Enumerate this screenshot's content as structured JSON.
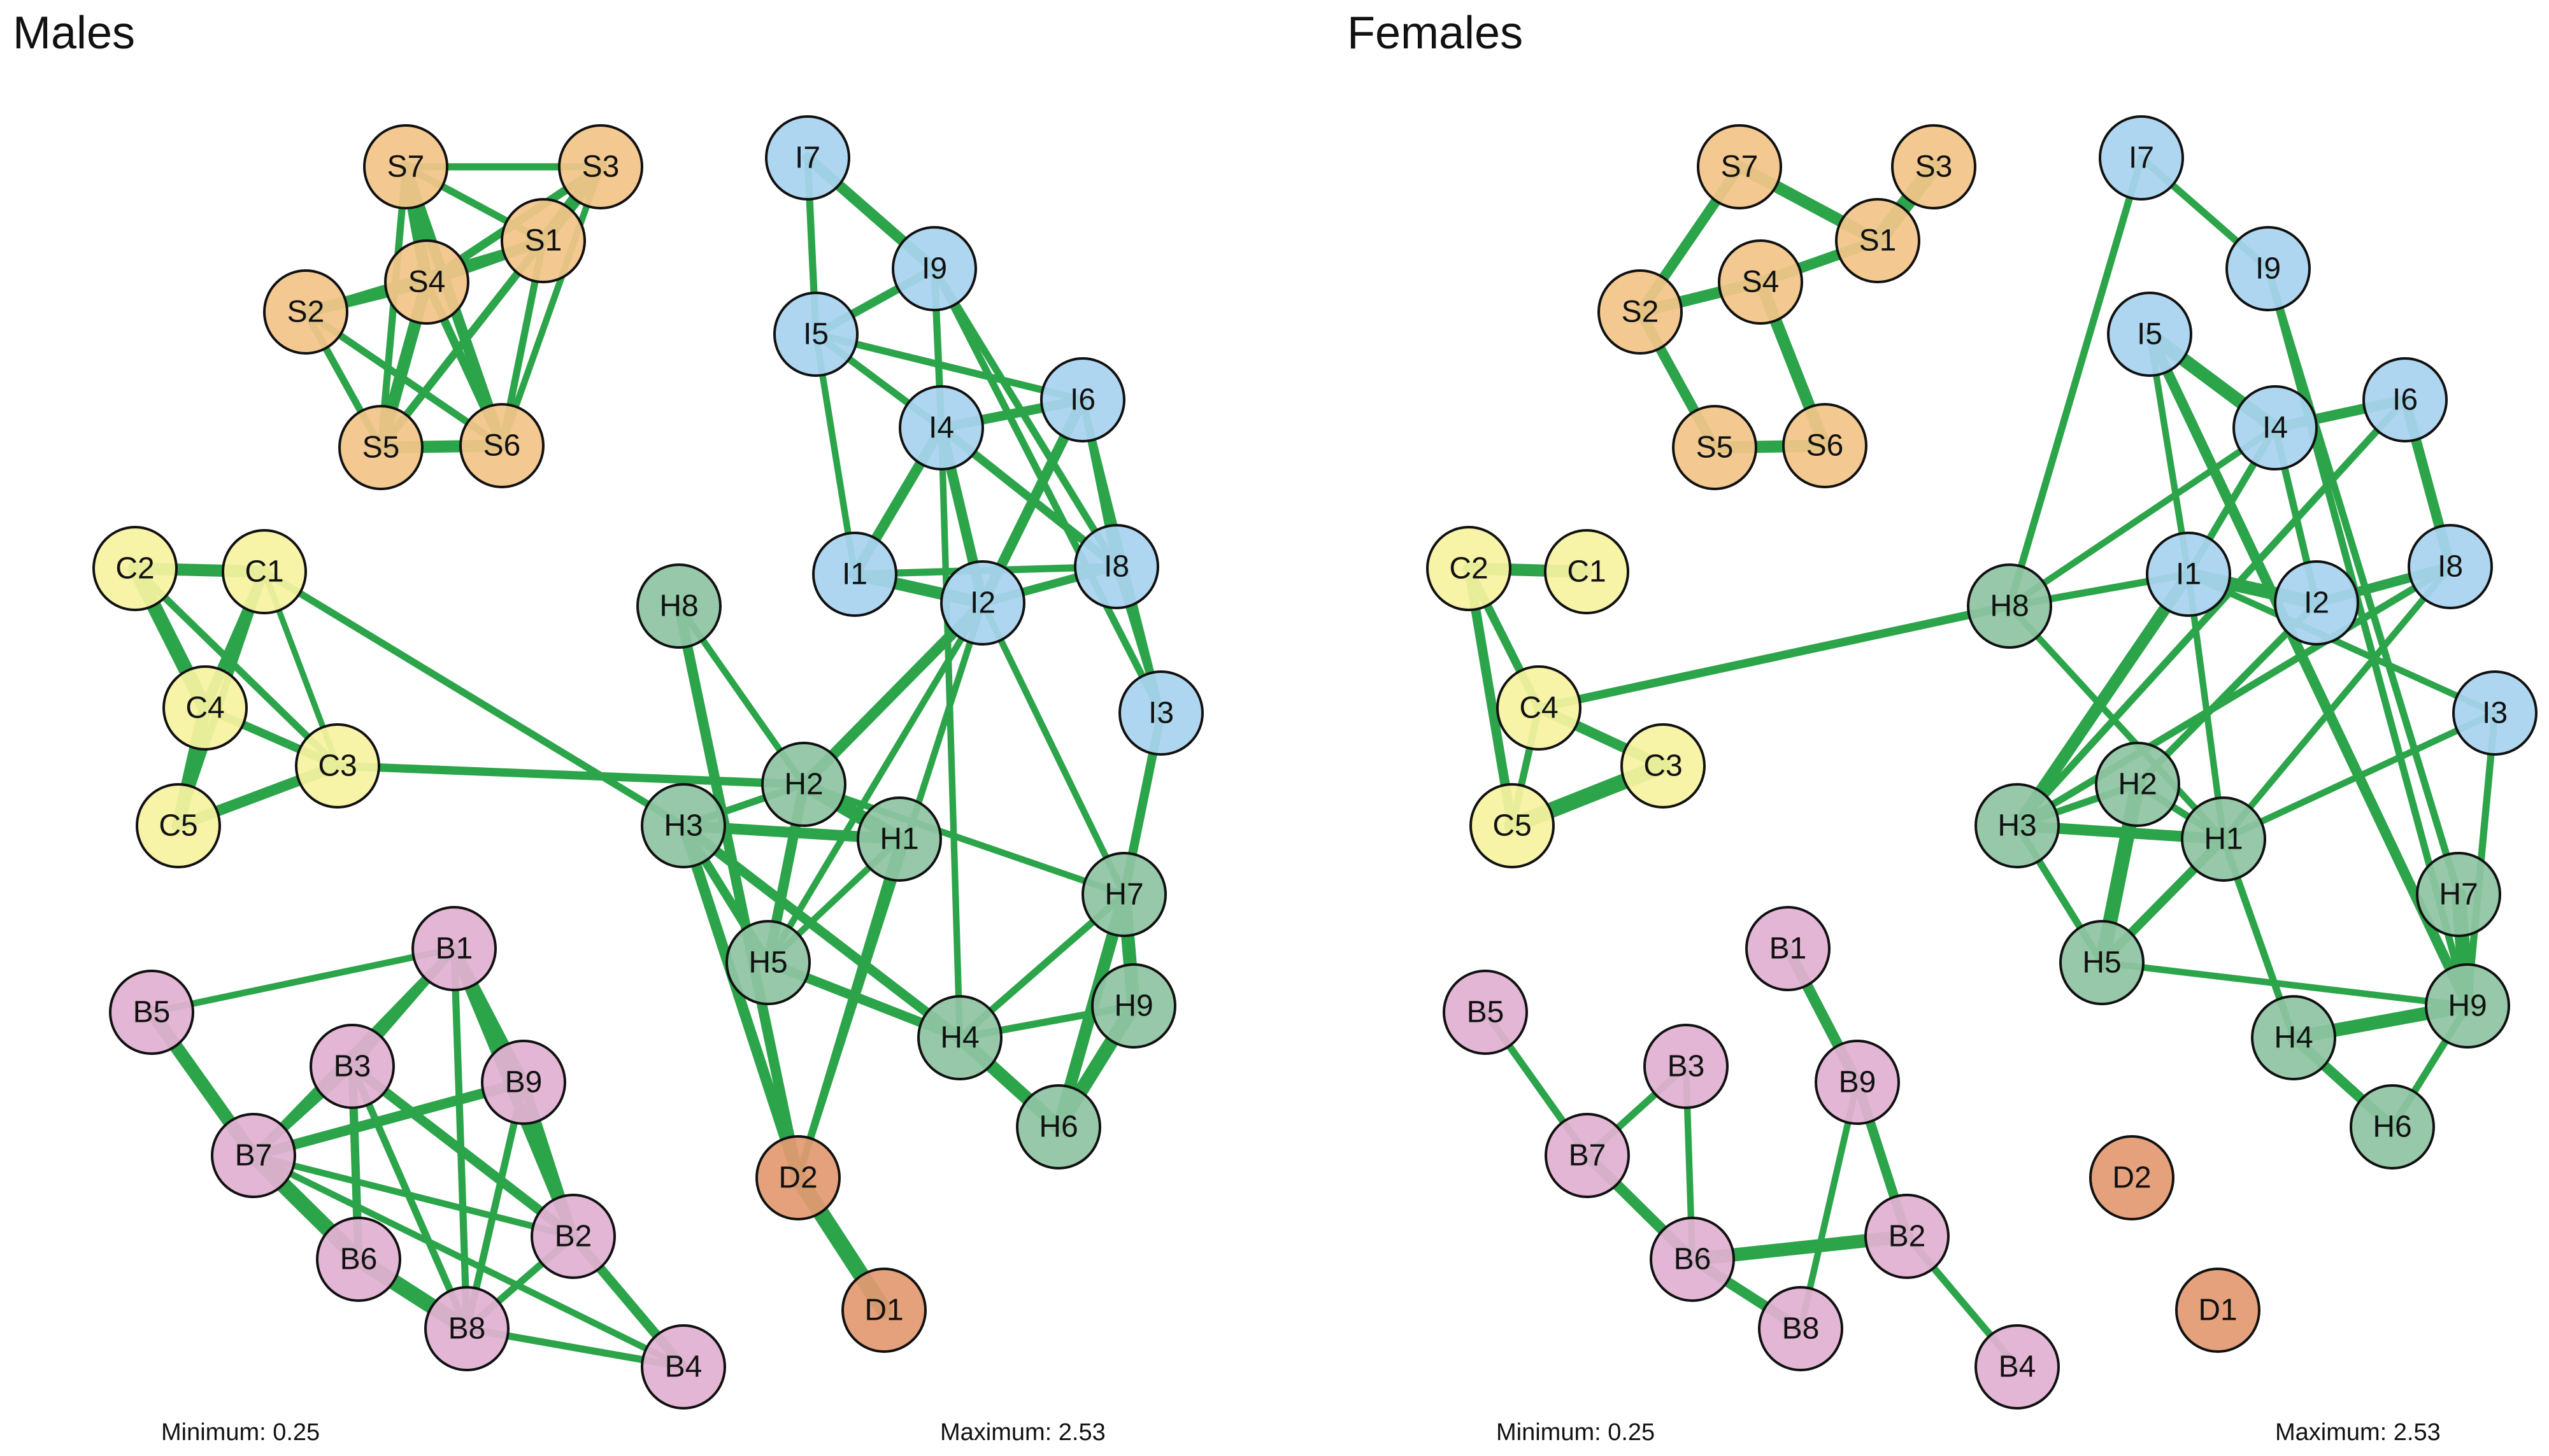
{
  "figure": {
    "edge_color": "#2ca44a",
    "node_stroke": "#111111",
    "group_colors": {
      "S": "#f2c589",
      "I": "#a9d3ef",
      "C": "#f6f2a0",
      "H": "#8ec4a3",
      "B": "#e2b0d2",
      "D": "#e29a72"
    },
    "weight_range": {
      "min": 0.25,
      "max": 2.53
    }
  },
  "panels": [
    {
      "title": "Males",
      "footer_min": "Minimum: 0.25",
      "footer_max": "Maximum: 2.53",
      "nodes": [
        "S7",
        "S3",
        "S1",
        "S4",
        "S2",
        "S5",
        "S6",
        "I7",
        "I9",
        "I5",
        "I6",
        "I4",
        "I1",
        "I2",
        "I8",
        "I3",
        "C2",
        "C1",
        "C4",
        "C3",
        "C5",
        "H8",
        "H2",
        "H3",
        "H1",
        "H7",
        "H5",
        "H4",
        "H9",
        "H6",
        "B1",
        "B5",
        "B3",
        "B9",
        "B7",
        "B2",
        "B6",
        "B8",
        "B4",
        "D2",
        "D1"
      ],
      "edges": [
        [
          "S7",
          "S3",
          1.0
        ],
        [
          "S7",
          "S1",
          1.0
        ],
        [
          "S7",
          "S4",
          1.8
        ],
        [
          "S7",
          "S5",
          1.0
        ],
        [
          "S7",
          "S6",
          1.6
        ],
        [
          "S3",
          "S1",
          2.0
        ],
        [
          "S3",
          "S4",
          1.2
        ],
        [
          "S3",
          "S5",
          1.0
        ],
        [
          "S3",
          "S6",
          0.9
        ],
        [
          "S1",
          "S4",
          1.6
        ],
        [
          "S1",
          "S2",
          1.0
        ],
        [
          "S1",
          "S5",
          1.1
        ],
        [
          "S1",
          "S6",
          1.0
        ],
        [
          "S4",
          "S2",
          1.7
        ],
        [
          "S4",
          "S5",
          1.8
        ],
        [
          "S4",
          "S6",
          1.2
        ],
        [
          "S2",
          "S5",
          1.0
        ],
        [
          "S2",
          "S6",
          1.0
        ],
        [
          "S5",
          "S6",
          1.8
        ],
        [
          "I7",
          "I9",
          1.6
        ],
        [
          "I7",
          "I5",
          1.0
        ],
        [
          "I9",
          "I5",
          1.2
        ],
        [
          "I9",
          "I4",
          1.0
        ],
        [
          "I9",
          "I8",
          1.0
        ],
        [
          "I9",
          "I3",
          1.0
        ],
        [
          "I5",
          "I6",
          1.0
        ],
        [
          "I5",
          "I4",
          1.0
        ],
        [
          "I5",
          "I1",
          0.9
        ],
        [
          "I6",
          "I4",
          1.4
        ],
        [
          "I6",
          "I2",
          1.5
        ],
        [
          "I6",
          "I8",
          1.0
        ],
        [
          "I4",
          "I1",
          1.5
        ],
        [
          "I4",
          "I2",
          1.5
        ],
        [
          "I4",
          "I8",
          1.2
        ],
        [
          "I4",
          "H4",
          0.9
        ],
        [
          "I1",
          "I2",
          1.8
        ],
        [
          "I1",
          "I8",
          1.0
        ],
        [
          "I2",
          "I8",
          1.2
        ],
        [
          "I8",
          "I3",
          0.9
        ],
        [
          "I6",
          "I3",
          0.9
        ],
        [
          "I2",
          "H2",
          1.6
        ],
        [
          "I2",
          "H5",
          0.9
        ],
        [
          "I2",
          "D2",
          0.9
        ],
        [
          "I2",
          "H7",
          0.9
        ],
        [
          "I3",
          "H7",
          1.3
        ],
        [
          "C2",
          "C1",
          1.8
        ],
        [
          "C2",
          "C4",
          2.2
        ],
        [
          "C2",
          "C3",
          1.0
        ],
        [
          "C1",
          "C4",
          1.5
        ],
        [
          "C1",
          "C5",
          1.0
        ],
        [
          "C1",
          "C3",
          0.8
        ],
        [
          "C4",
          "C3",
          1.2
        ],
        [
          "C4",
          "C5",
          2.0
        ],
        [
          "C3",
          "C5",
          1.6
        ],
        [
          "C1",
          "H3",
          1.0
        ],
        [
          "C3",
          "H2",
          1.2
        ],
        [
          "H8",
          "H2",
          0.9
        ],
        [
          "H8",
          "D2",
          1.5
        ],
        [
          "H2",
          "H1",
          2.2
        ],
        [
          "H2",
          "H3",
          1.0
        ],
        [
          "H2",
          "H5",
          1.5
        ],
        [
          "H2",
          "H7",
          0.9
        ],
        [
          "H3",
          "H1",
          1.6
        ],
        [
          "H3",
          "H5",
          1.3
        ],
        [
          "H3",
          "H4",
          1.4
        ],
        [
          "H3",
          "D2",
          1.6
        ],
        [
          "H1",
          "H5",
          0.9
        ],
        [
          "H1",
          "D2",
          0.9
        ],
        [
          "H7",
          "H9",
          2.0
        ],
        [
          "H7",
          "H4",
          1.0
        ],
        [
          "H7",
          "H6",
          1.8
        ],
        [
          "H5",
          "H4",
          1.4
        ],
        [
          "H4",
          "H9",
          1.0
        ],
        [
          "H4",
          "H6",
          2.0
        ],
        [
          "H9",
          "H6",
          2.1
        ],
        [
          "D2",
          "D1",
          2.5
        ],
        [
          "B1",
          "B5",
          0.9
        ],
        [
          "B1",
          "B3",
          1.2
        ],
        [
          "B1",
          "B9",
          1.6
        ],
        [
          "B1",
          "B7",
          1.0
        ],
        [
          "B1",
          "B2",
          1.7
        ],
        [
          "B1",
          "B8",
          1.0
        ],
        [
          "B5",
          "B7",
          2.0
        ],
        [
          "B3",
          "B7",
          1.2
        ],
        [
          "B3",
          "B6",
          1.2
        ],
        [
          "B3",
          "B2",
          1.4
        ],
        [
          "B3",
          "B8",
          1.0
        ],
        [
          "B9",
          "B7",
          1.5
        ],
        [
          "B9",
          "B2",
          1.4
        ],
        [
          "B9",
          "B8",
          1.0
        ],
        [
          "B7",
          "B6",
          2.4
        ],
        [
          "B7",
          "B2",
          0.9
        ],
        [
          "B7",
          "B4",
          0.9
        ],
        [
          "B2",
          "B8",
          1.0
        ],
        [
          "B2",
          "B4",
          1.4
        ],
        [
          "B6",
          "B8",
          2.4
        ],
        [
          "B8",
          "B4",
          1.0
        ]
      ]
    },
    {
      "title": "Females",
      "footer_min": "Minimum: 0.25",
      "footer_max": "Maximum: 2.53",
      "nodes": [
        "S7",
        "S3",
        "S1",
        "S4",
        "S2",
        "S5",
        "S6",
        "I7",
        "I9",
        "I5",
        "I6",
        "I4",
        "I1",
        "I2",
        "I8",
        "I3",
        "C2",
        "C1",
        "C4",
        "C3",
        "C5",
        "H8",
        "H2",
        "H3",
        "H1",
        "H7",
        "H5",
        "H4",
        "H9",
        "H6",
        "B1",
        "B5",
        "B3",
        "B9",
        "B7",
        "B2",
        "B6",
        "B8",
        "B4",
        "D2",
        "D1"
      ],
      "edges": [
        [
          "S7",
          "S1",
          1.8
        ],
        [
          "S7",
          "S2",
          1.5
        ],
        [
          "S3",
          "S1",
          2.5
        ],
        [
          "S1",
          "S4",
          1.6
        ],
        [
          "S4",
          "S2",
          1.7
        ],
        [
          "S4",
          "S6",
          1.8
        ],
        [
          "S2",
          "S5",
          1.5
        ],
        [
          "S5",
          "S6",
          1.8
        ],
        [
          "I7",
          "I9",
          1.0
        ],
        [
          "I7",
          "H8",
          1.0
        ],
        [
          "I9",
          "H7",
          1.0
        ],
        [
          "I9",
          "H9",
          1.0
        ],
        [
          "I5",
          "I4",
          2.0
        ],
        [
          "I5",
          "I1",
          0.9
        ],
        [
          "I5",
          "H9",
          1.5
        ],
        [
          "I6",
          "I4",
          1.5
        ],
        [
          "I6",
          "I8",
          1.5
        ],
        [
          "I6",
          "H3",
          1.0
        ],
        [
          "I4",
          "I1",
          1.0
        ],
        [
          "I4",
          "I2",
          1.0
        ],
        [
          "I4",
          "H8",
          0.9
        ],
        [
          "I1",
          "I2",
          2.0
        ],
        [
          "I1",
          "H8",
          1.0
        ],
        [
          "I1",
          "H3",
          1.8
        ],
        [
          "I1",
          "H1",
          0.9
        ],
        [
          "I1",
          "I3",
          0.9
        ],
        [
          "I2",
          "I8",
          1.4
        ],
        [
          "I2",
          "H2",
          1.0
        ],
        [
          "I8",
          "H3",
          1.0
        ],
        [
          "I8",
          "H1",
          0.9
        ],
        [
          "I3",
          "H1",
          0.9
        ],
        [
          "I3",
          "H9",
          1.0
        ],
        [
          "C2",
          "C1",
          1.8
        ],
        [
          "C2",
          "C4",
          1.2
        ],
        [
          "C2",
          "C5",
          1.4
        ],
        [
          "C4",
          "C5",
          1.0
        ],
        [
          "C4",
          "C3",
          1.5
        ],
        [
          "C5",
          "C3",
          2.4
        ],
        [
          "C4",
          "H8",
          1.2
        ],
        [
          "H8",
          "H1",
          0.9
        ],
        [
          "H2",
          "H3",
          1.0
        ],
        [
          "H2",
          "H5",
          2.2
        ],
        [
          "H2",
          "H1",
          1.0
        ],
        [
          "H3",
          "H1",
          1.6
        ],
        [
          "H3",
          "H5",
          1.0
        ],
        [
          "H1",
          "H5",
          1.3
        ],
        [
          "H1",
          "H4",
          1.0
        ],
        [
          "H5",
          "H9",
          0.9
        ],
        [
          "H4",
          "H9",
          2.0
        ],
        [
          "H4",
          "H6",
          1.5
        ],
        [
          "H7",
          "H9",
          2.2
        ],
        [
          "H9",
          "H6",
          1.0
        ],
        [
          "B5",
          "B7",
          1.0
        ],
        [
          "B7",
          "B3",
          1.0
        ],
        [
          "B7",
          "B6",
          1.6
        ],
        [
          "B3",
          "B6",
          0.9
        ],
        [
          "B1",
          "B9",
          1.6
        ],
        [
          "B9",
          "B2",
          1.4
        ],
        [
          "B9",
          "B8",
          0.9
        ],
        [
          "B6",
          "B2",
          2.0
        ],
        [
          "B6",
          "B8",
          1.5
        ],
        [
          "B2",
          "B4",
          1.0
        ]
      ]
    }
  ]
}
